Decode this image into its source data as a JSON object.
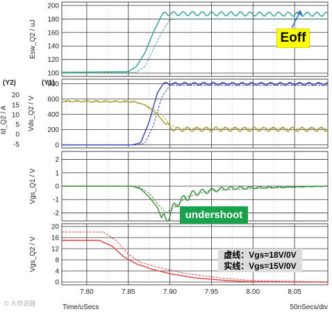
{
  "chart_data": {
    "type": "line",
    "x_axis": {
      "label": "Time/uSecs",
      "range": [
        7.77,
        8.09
      ],
      "tick_labels": [
        "7.80",
        "7.85",
        "7.90",
        "7.95",
        "8.00",
        "8.05"
      ],
      "ticks": [
        7.8,
        7.85,
        7.9,
        7.95,
        8.0,
        8.05
      ],
      "scale_text": "50nSecs/div"
    },
    "grid": true,
    "panels": [
      {
        "ylabel": "Esw_Q2 / uJ",
        "ylim": [
          95,
          205
        ],
        "yticks": [
          100,
          120,
          140,
          160,
          180,
          200
        ],
        "series": [
          {
            "style": "solid",
            "color": "#2a9d8f",
            "points": [
              [
                7.77,
                101
              ],
              [
                7.85,
                102
              ],
              [
                7.86,
                110
              ],
              [
                7.87,
                130
              ],
              [
                7.88,
                160
              ],
              [
                7.89,
                185
              ],
              [
                7.895,
                188
              ],
              [
                8.09,
                187
              ]
            ],
            "ripple": {
              "from": 7.89,
              "amplitude": 3,
              "period": 0.0115
            }
          },
          {
            "style": "dashed",
            "color": "#2a9d8f",
            "points": [
              [
                7.77,
                100
              ],
              [
                7.86,
                101
              ],
              [
                7.87,
                110
              ],
              [
                7.88,
                135
              ],
              [
                7.89,
                160
              ],
              [
                7.9,
                179
              ],
              [
                7.91,
                180
              ],
              [
                8.09,
                180
              ]
            ]
          }
        ]
      },
      {
        "ylabel": "Vds_Q2 / V",
        "ylabel2": "Id_Q2 / A",
        "axis_tag": "(Y1)",
        "axis_tag2": "(Y2)",
        "ylim": [
          -40,
          860
        ],
        "yticks": [
          0,
          200,
          400,
          600,
          800
        ],
        "y2ticks": [
          20,
          15,
          10,
          5,
          0,
          -5
        ],
        "y2lim": [
          -7,
          28
        ],
        "series": [
          {
            "style": "solid",
            "color": "#2e3fbf",
            "points": [
              [
                7.77,
                0
              ],
              [
                7.855,
                0
              ],
              [
                7.865,
                30
              ],
              [
                7.875,
                300
              ],
              [
                7.885,
                680
              ],
              [
                7.892,
                800
              ],
              [
                8.09,
                800
              ]
            ],
            "ripple": {
              "from": 7.892,
              "amplitude": 18,
              "period": 0.0115
            }
          },
          {
            "style": "dashed",
            "color": "#2e3fbf",
            "points": [
              [
                7.77,
                0
              ],
              [
                7.86,
                0
              ],
              [
                7.87,
                20
              ],
              [
                7.88,
                250
              ],
              [
                7.89,
                620
              ],
              [
                7.9,
                780
              ],
              [
                8.09,
                780
              ]
            ]
          },
          {
            "style": "solid",
            "color": "#a39b2c",
            "axis": "y2",
            "points": [
              [
                7.77,
                16.8
              ],
              [
                7.855,
                16.6
              ],
              [
                7.87,
                15
              ],
              [
                7.885,
                10
              ],
              [
                7.895,
                5
              ],
              [
                7.905,
                2.5
              ],
              [
                8.09,
                2.5
              ]
            ],
            "ripple": {
              "from": 7.895,
              "amplitude": 1.1,
              "period": 0.0115
            }
          },
          {
            "style": "dashed",
            "color": "#a39b2c",
            "axis": "y2",
            "points": [
              [
                7.77,
                16.5
              ],
              [
                7.86,
                16.4
              ],
              [
                7.875,
                14
              ],
              [
                7.89,
                10
              ],
              [
                7.9,
                5
              ],
              [
                7.91,
                3
              ],
              [
                8.09,
                3
              ]
            ]
          }
        ]
      },
      {
        "ylabel": "Vgs_Q1 / V",
        "ylim": [
          -2.6,
          2.6
        ],
        "yticks": [
          2,
          1,
          0,
          -1,
          -2
        ],
        "series": [
          {
            "style": "solid",
            "color": "#2e8b2e",
            "points": [
              [
                7.77,
                0
              ],
              [
                7.855,
                0
              ],
              [
                7.865,
                -0.2
              ],
              [
                7.875,
                -0.8
              ],
              [
                7.885,
                -1.6
              ],
              [
                7.89,
                -2.4
              ],
              [
                7.895,
                -2.6
              ],
              [
                7.9,
                -2.0
              ],
              [
                7.91,
                -1.2
              ],
              [
                7.93,
                -0.5
              ],
              [
                7.97,
                -0.15
              ],
              [
                8.09,
                0
              ]
            ],
            "ripple": {
              "from": 7.89,
              "amplitude": 0.45,
              "period": 0.0115,
              "decay": 0.06
            }
          },
          {
            "style": "dashed",
            "color": "#2e8b2e",
            "points": [
              [
                7.77,
                0
              ],
              [
                7.86,
                0
              ],
              [
                7.875,
                -0.5
              ],
              [
                7.885,
                -1.3
              ],
              [
                7.895,
                -2.0
              ],
              [
                7.905,
                -1.6
              ],
              [
                7.92,
                -0.8
              ],
              [
                7.95,
                -0.3
              ],
              [
                8.09,
                0
              ]
            ]
          }
        ]
      },
      {
        "ylabel": "Vgs_Q2 / V",
        "ylim": [
          -1,
          21
        ],
        "yticks": [
          20,
          16,
          12,
          8,
          4,
          0
        ],
        "series": [
          {
            "style": "solid",
            "color": "#e23b3b",
            "points": [
              [
                7.77,
                15
              ],
              [
                7.815,
                15
              ],
              [
                7.83,
                13
              ],
              [
                7.845,
                9
              ],
              [
                7.86,
                6.5
              ],
              [
                7.88,
                4.5
              ],
              [
                7.9,
                3
              ],
              [
                7.93,
                1.5
              ],
              [
                7.97,
                0.5
              ],
              [
                8.0,
                0.1
              ],
              [
                8.09,
                0
              ]
            ]
          },
          {
            "style": "dashed",
            "color": "#e23b3b",
            "points": [
              [
                7.77,
                18
              ],
              [
                7.82,
                18
              ],
              [
                7.835,
                15
              ],
              [
                7.85,
                10
              ],
              [
                7.865,
                7
              ],
              [
                7.89,
                5
              ],
              [
                7.92,
                3
              ],
              [
                7.96,
                1.5
              ],
              [
                8.0,
                0.5
              ],
              [
                8.09,
                0
              ]
            ]
          }
        ]
      }
    ]
  },
  "annotations": {
    "eoff": "Eoff",
    "undershoot": "undershoot",
    "legend_dashed": "虚线：Vgs=18V/0V",
    "legend_solid": "实线：Vgs=15V/0V"
  },
  "footer": {
    "xlabel": "Time/uSecs",
    "scale": "50nSecs/div",
    "watermark": "© 大师说器"
  }
}
